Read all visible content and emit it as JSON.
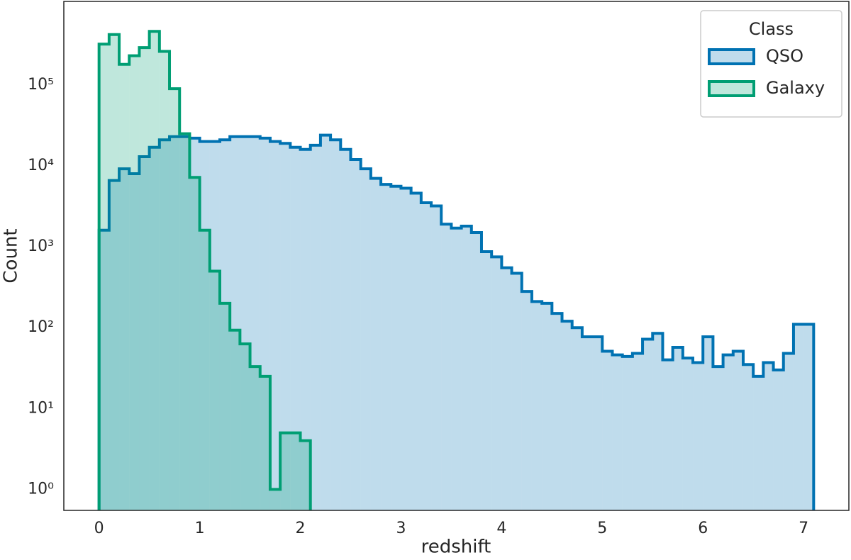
{
  "chart_data": {
    "type": "histogram",
    "x_label": "redshift",
    "y_label": "Count",
    "log_y": true,
    "grid": false,
    "legend": {
      "title": "Class",
      "position": "upper right"
    },
    "xlim": [
      -0.35,
      7.45
    ],
    "ylim": [
      0.55,
      1080000
    ],
    "xticks": [
      0,
      1,
      2,
      3,
      4,
      5,
      6,
      7
    ],
    "yticks": [
      {
        "value": 1,
        "label": "10⁰"
      },
      {
        "value": 10,
        "label": "10¹"
      },
      {
        "value": 100,
        "label": "10²"
      },
      {
        "value": 1000,
        "label": "10³"
      },
      {
        "value": 10000,
        "label": "10⁴"
      },
      {
        "value": 100000,
        "label": "10⁵"
      }
    ],
    "series": [
      {
        "name": "QSO",
        "color": "#0072b2",
        "bins": [
          0,
          0.1,
          0.2,
          0.3,
          0.4,
          0.5,
          0.6,
          0.7,
          0.8,
          0.9,
          1,
          1.1,
          1.2,
          1.3,
          1.4,
          1.5,
          1.6,
          1.7,
          1.8,
          1.9,
          2,
          2.1,
          2.2,
          2.3,
          2.4,
          2.5,
          2.6,
          2.7,
          2.8,
          2.9,
          3,
          3.1,
          3.2,
          3.3,
          3.4,
          3.5,
          3.6,
          3.7,
          3.8,
          3.9,
          4,
          4.1,
          4.2,
          4.3,
          4.4,
          4.5,
          4.6,
          4.7,
          4.8,
          4.9,
          5,
          5.1,
          5.2,
          5.3,
          5.4,
          5.5,
          5.6,
          5.7,
          5.8,
          5.9,
          6,
          6.1,
          6.2,
          6.3,
          6.4,
          6.5,
          6.6,
          6.7,
          6.8,
          6.9,
          7,
          7.1
        ],
        "values": [
          1600,
          6600,
          9200,
          8000,
          13000,
          17000,
          21000,
          23000,
          23000,
          22000,
          20000,
          20000,
          21000,
          23000,
          23000,
          23000,
          22000,
          20000,
          19000,
          17000,
          16000,
          18000,
          24000,
          21000,
          16000,
          12000,
          9200,
          7000,
          5900,
          5600,
          5300,
          4600,
          3500,
          3200,
          1900,
          1700,
          1800,
          1500,
          870,
          750,
          550,
          470,
          280,
          210,
          200,
          150,
          120,
          100,
          77,
          77,
          51,
          46,
          44,
          48,
          72,
          85,
          40,
          57,
          42,
          37,
          77,
          33,
          46,
          51,
          35,
          25,
          37,
          30,
          48,
          110,
          110
        ]
      },
      {
        "name": "Galaxy",
        "color": "#009e73",
        "bins": [
          0,
          0.1,
          0.2,
          0.3,
          0.4,
          0.5,
          0.6,
          0.7,
          0.8,
          0.9,
          1,
          1.1,
          1.2,
          1.3,
          1.4,
          1.5,
          1.6,
          1.7,
          1.8,
          1.9,
          2,
          2.1
        ],
        "values": [
          320000,
          420000,
          180000,
          230000,
          290000,
          460000,
          260000,
          90000,
          25000,
          7200,
          1600,
          500,
          200,
          93,
          63,
          33,
          25,
          1,
          5,
          5,
          4
        ]
      }
    ]
  }
}
